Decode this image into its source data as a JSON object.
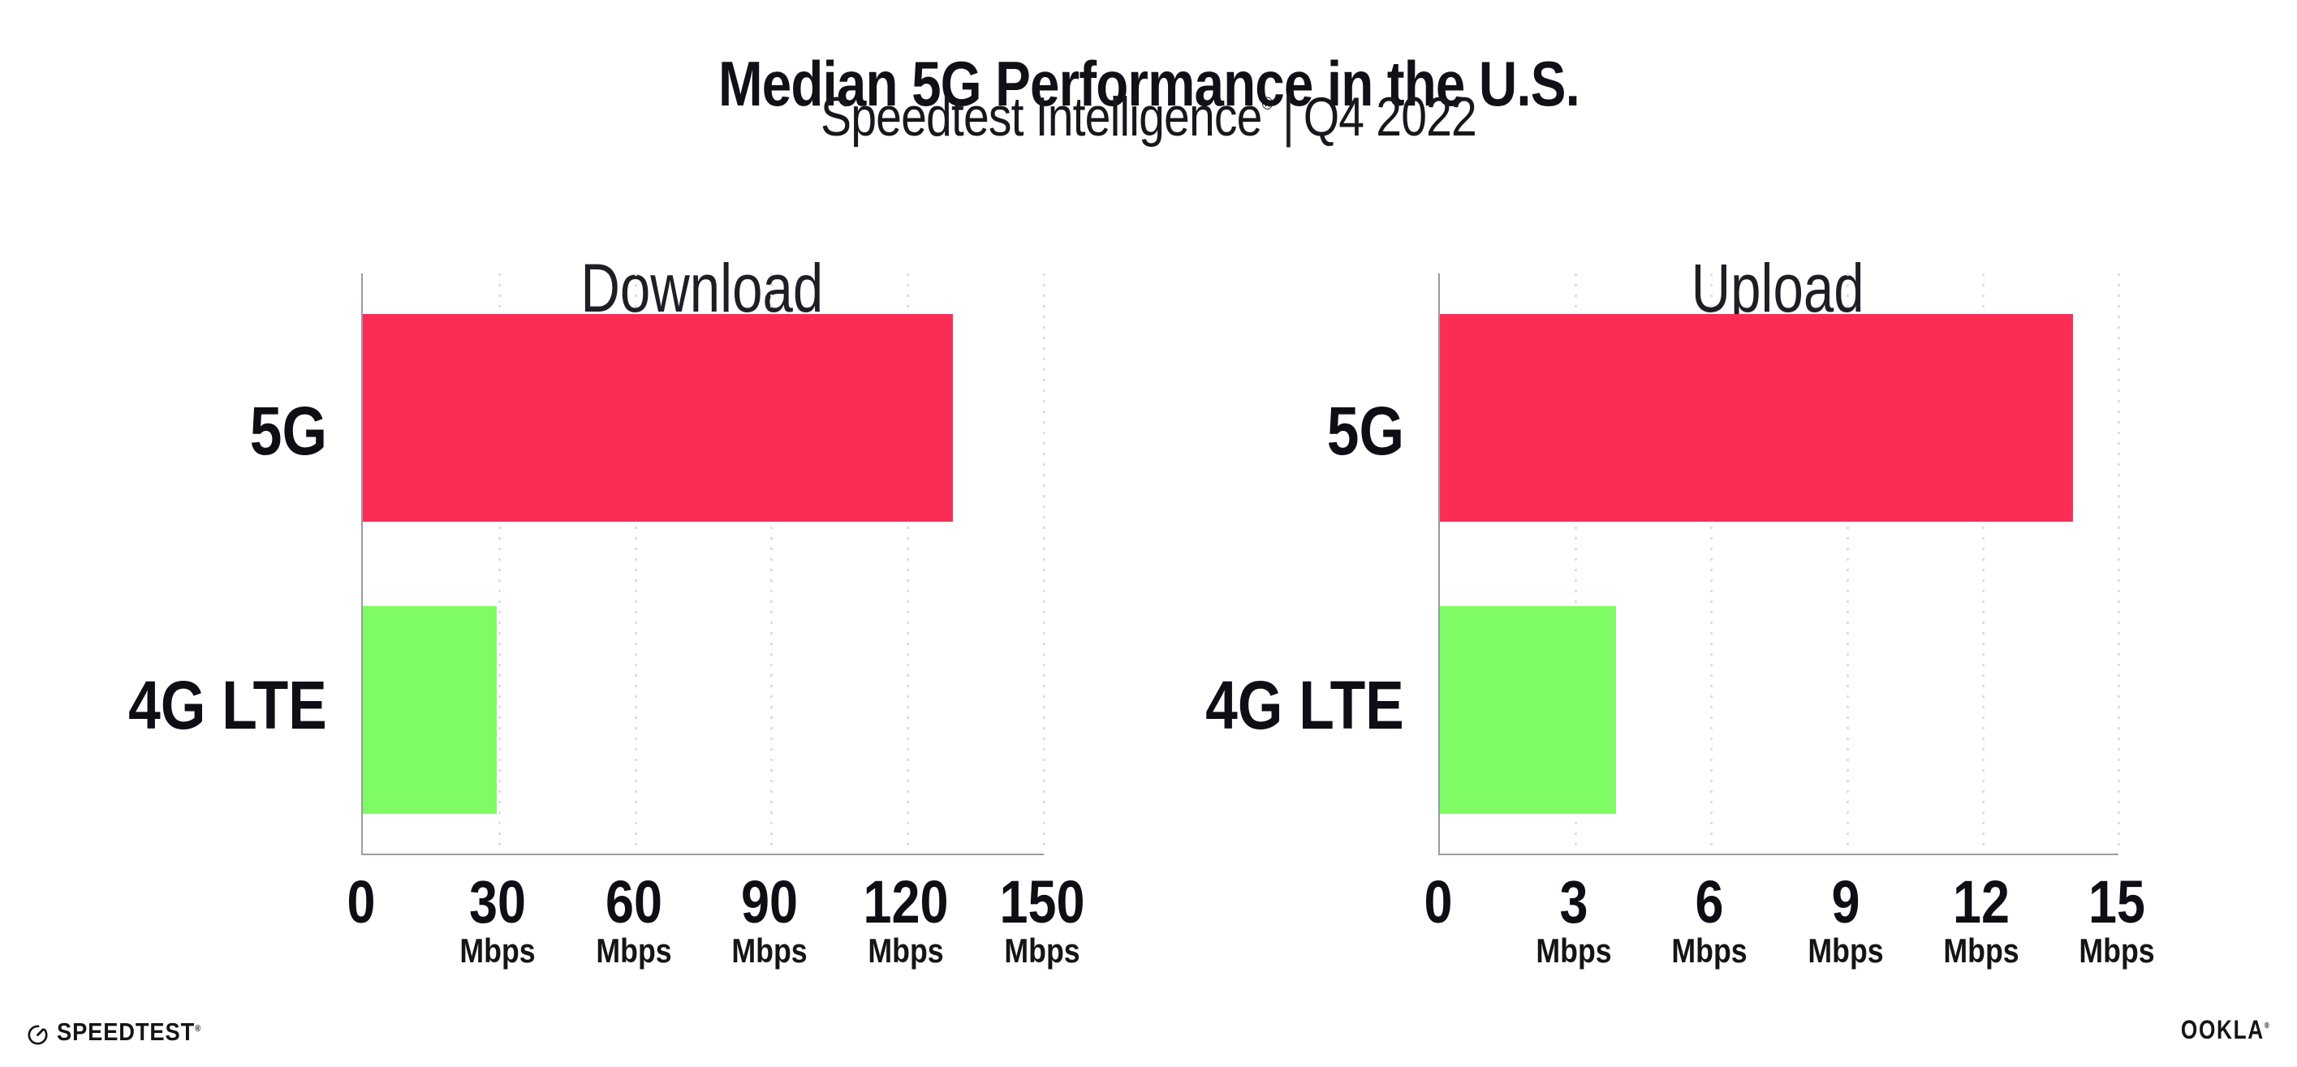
{
  "header": {
    "title": "Median 5G Performance in the U.S.",
    "subtitle_product": "Speedtest Intelligence",
    "subtitle_registered": "®",
    "subtitle_separator": "|",
    "subtitle_period": "Q4 2022"
  },
  "chart_data": [
    {
      "type": "bar",
      "orientation": "horizontal",
      "title": "Download",
      "categories": [
        "5G",
        "4G LTE"
      ],
      "values": [
        130,
        29.5
      ],
      "unit": "Mbps",
      "xlim": [
        0,
        150
      ],
      "ticks": [
        0,
        30,
        60,
        90,
        120,
        150
      ],
      "bar_colors": [
        "#fb2d55",
        "#7ffb63"
      ],
      "grid": "dotted-vertical",
      "legend": "none"
    },
    {
      "type": "bar",
      "orientation": "horizontal",
      "title": "Upload",
      "categories": [
        "5G",
        "4G LTE"
      ],
      "values": [
        14,
        3.9
      ],
      "unit": "Mbps",
      "xlim": [
        0,
        15
      ],
      "ticks": [
        0,
        3,
        6,
        9,
        12,
        15
      ],
      "bar_colors": [
        "#fb2d55",
        "#7ffb63"
      ],
      "grid": "dotted-vertical",
      "legend": "none"
    }
  ],
  "footer": {
    "speedtest_label": "SPEEDTEST",
    "speedtest_mark": "®",
    "ookla_label": "OOKLA",
    "ookla_mark": "®"
  },
  "colors": {
    "text": "#101016",
    "axis": "#9a9aa2",
    "grid": "#dcdee9",
    "accent-5g": "#fb2d55",
    "accent-4g": "#7ffb63"
  }
}
